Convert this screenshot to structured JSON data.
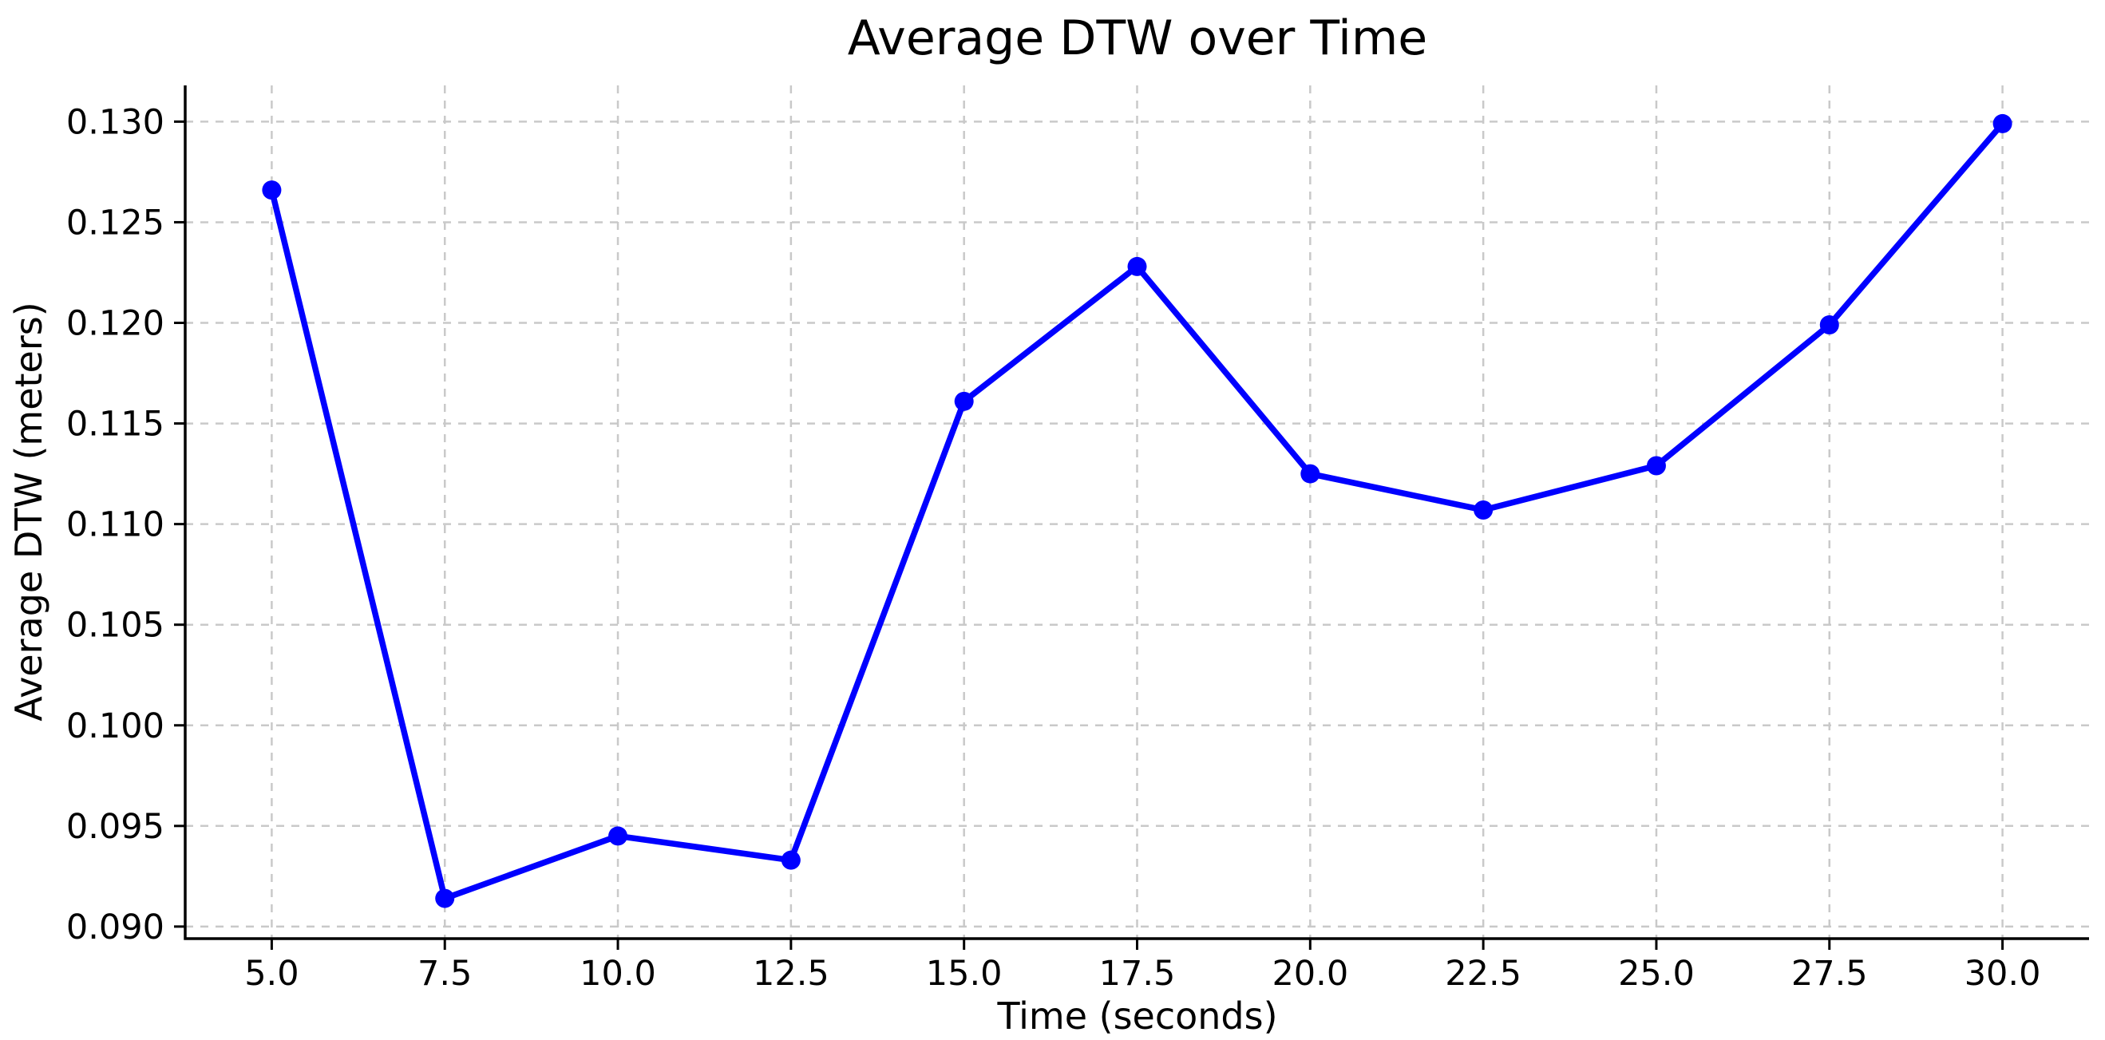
{
  "chart_data": {
    "type": "line",
    "title": "Average DTW over Time",
    "xlabel": "Time (seconds)",
    "ylabel": "Average DTW (meters)",
    "x": [
      5.0,
      7.5,
      10.0,
      12.5,
      15.0,
      17.5,
      20.0,
      22.5,
      25.0,
      27.5,
      30.0
    ],
    "y": [
      0.1266,
      0.0914,
      0.0945,
      0.0933,
      0.1161,
      0.1228,
      0.1125,
      0.1107,
      0.1129,
      0.1199,
      0.1299
    ],
    "x_tick_labels": [
      "5.0",
      "7.5",
      "10.0",
      "12.5",
      "15.0",
      "17.5",
      "20.0",
      "22.5",
      "25.0",
      "27.5",
      "30.0"
    ],
    "y_tick_labels": [
      "0.090",
      "0.095",
      "0.100",
      "0.105",
      "0.110",
      "0.115",
      "0.120",
      "0.125",
      "0.130"
    ],
    "xlim": [
      3.75,
      31.25
    ],
    "ylim": [
      0.0894,
      0.1318
    ],
    "grid": true,
    "legend": "none",
    "line_color": "#0000ff",
    "marker": "circle",
    "grid_color": "#c9c9c9",
    "spine_color": "#000000"
  }
}
